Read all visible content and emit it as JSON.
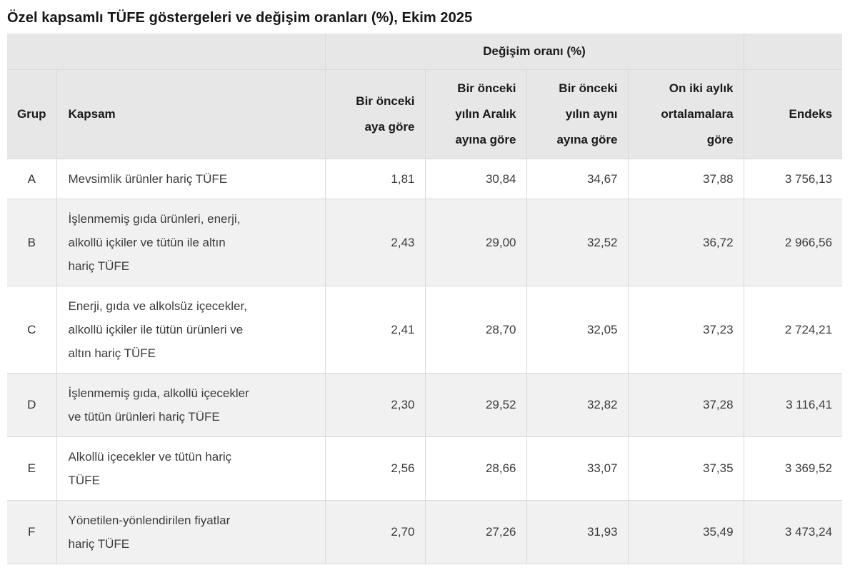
{
  "page_title": "Özel kapsamlı TÜFE göstergeleri ve değişim oranları (%), Ekim 2025",
  "table": {
    "group_header": "Değişim oranı (%)",
    "columns": {
      "grup": "Grup",
      "kapsam": "Kapsam",
      "monthly": "Bir önceki\naya göre",
      "since_december": "Bir önceki\nyılın Aralık\nayına göre",
      "yearly": "Bir önceki\nyılın aynı\nayına göre",
      "twelve_month_avg": "On iki aylık\nortalamalara\ngöre",
      "endeks": "Endeks"
    },
    "rows": [
      {
        "grup": "A",
        "kapsam": "Mevsimlik ürünler hariç TÜFE",
        "monthly": "1,81",
        "since_december": "30,84",
        "yearly": "34,67",
        "twelve_month_avg": "37,88",
        "endeks": "3 756,13"
      },
      {
        "grup": "B",
        "kapsam": "İşlenmemiş gıda ürünleri, enerji,\nalkollü içkiler ve tütün ile altın\nhariç TÜFE",
        "monthly": "2,43",
        "since_december": "29,00",
        "yearly": "32,52",
        "twelve_month_avg": "36,72",
        "endeks": "2 966,56"
      },
      {
        "grup": "C",
        "kapsam": "Enerji, gıda ve alkolsüz içecekler,\nalkollü içkiler ile tütün ürünleri ve\naltın hariç TÜFE",
        "monthly": "2,41",
        "since_december": "28,70",
        "yearly": "32,05",
        "twelve_month_avg": "37,23",
        "endeks": "2 724,21"
      },
      {
        "grup": "D",
        "kapsam": "İşlenmemiş gıda, alkollü içecekler\nve tütün ürünleri hariç TÜFE",
        "monthly": "2,30",
        "since_december": "29,52",
        "yearly": "32,82",
        "twelve_month_avg": "37,28",
        "endeks": "3 116,41"
      },
      {
        "grup": "E",
        "kapsam": "Alkollü içecekler ve tütün hariç\nTÜFE",
        "monthly": "2,56",
        "since_december": "28,66",
        "yearly": "33,07",
        "twelve_month_avg": "37,35",
        "endeks": "3 369,52"
      },
      {
        "grup": "F",
        "kapsam": "Yönetilen-yönlendirilen fiyatlar\nhariç TÜFE",
        "monthly": "2,70",
        "since_december": "27,26",
        "yearly": "31,93",
        "twelve_month_avg": "35,49",
        "endeks": "3 473,24"
      }
    ]
  },
  "colors": {
    "header_bg": "#e7e7e7",
    "stripe_bg": "#f1f1f1",
    "border": "#d9d9d9",
    "title_text": "#161616",
    "body_text": "#3c3c3c"
  },
  "chart_data": {
    "type": "table",
    "title": "Özel kapsamlı TÜFE göstergeleri ve değişim oranları (%), Ekim 2025",
    "column_groups": [
      {
        "label": "Değişim oranı (%)",
        "covers": [
          "Bir önceki aya göre",
          "Bir önceki yılın Aralık ayına göre",
          "Bir önceki yılın aynı ayına göre",
          "On iki aylık ortalamalara göre"
        ]
      }
    ],
    "columns": [
      "Grup",
      "Kapsam",
      "Bir önceki aya göre",
      "Bir önceki yılın Aralık ayına göre",
      "Bir önceki yılın aynı ayına göre",
      "On iki aylık ortalamalara göre",
      "Endeks"
    ],
    "rows": [
      [
        "A",
        "Mevsimlik ürünler hariç TÜFE",
        1.81,
        30.84,
        34.67,
        37.88,
        3756.13
      ],
      [
        "B",
        "İşlenmemiş gıda ürünleri, enerji, alkollü içkiler ve tütün ile altın hariç TÜFE",
        2.43,
        29.0,
        32.52,
        36.72,
        2966.56
      ],
      [
        "C",
        "Enerji, gıda ve alkolsüz içecekler, alkollü içkiler ile tütün ürünleri ve altın hariç TÜFE",
        2.41,
        28.7,
        32.05,
        37.23,
        2724.21
      ],
      [
        "D",
        "İşlenmemiş gıda, alkollü içecekler ve tütün ürünleri hariç TÜFE",
        2.3,
        29.52,
        32.82,
        37.28,
        3116.41
      ],
      [
        "E",
        "Alkollü içecekler ve tütün hariç TÜFE",
        2.56,
        28.66,
        33.07,
        37.35,
        3369.52
      ],
      [
        "F",
        "Yönetilen-yönlendirilen fiyatlar hariç TÜFE",
        2.7,
        27.26,
        31.93,
        35.49,
        3473.24
      ]
    ],
    "number_format": "tr-TR (comma decimal, space thousands)"
  }
}
